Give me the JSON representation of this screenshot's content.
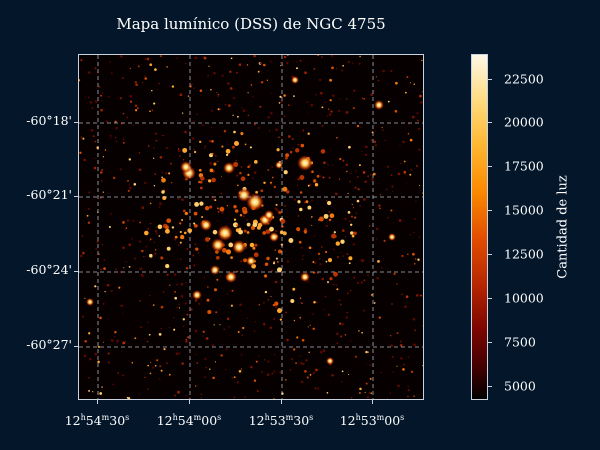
{
  "figure": {
    "title": "Mapa lumínico (DSS) de NGC 4755",
    "y_ticks": [
      "-60°18'",
      "-60°21'",
      "-60°24'",
      "-60°27'"
    ],
    "x_ticks": [
      {
        "h": "12",
        "m": "54",
        "s": "30"
      },
      {
        "h": "12",
        "m": "54",
        "s": "00"
      },
      {
        "h": "12",
        "m": "53",
        "s": "30"
      },
      {
        "h": "12",
        "m": "53",
        "s": "00"
      }
    ],
    "colorbar": {
      "label": "Cantidad de luz",
      "ticks": [
        "22500",
        "20000",
        "17500",
        "15000",
        "12500",
        "10000",
        "7500",
        "5000"
      ],
      "tick_values": [
        22500,
        20000,
        17500,
        15000,
        12500,
        10000,
        7500,
        5000
      ],
      "range": [
        4200,
        23900
      ]
    },
    "grid": "dashed"
  }
}
